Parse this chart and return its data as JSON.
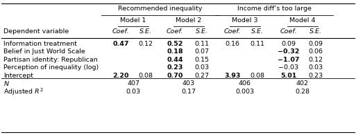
{
  "header_group1": "Recommended inequality",
  "header_group2": "Income diff’s too large",
  "model_headers": [
    "Model 1",
    "Model 2",
    "Model 3",
    "Model 4"
  ],
  "col_headers": [
    "Coef.",
    "S.E.",
    "Coef.",
    "S.E.",
    "Coef.",
    "S.E.",
    "Coef.",
    "S.E."
  ],
  "dep_var_label": "Dependent variable",
  "row_labels": [
    "Information treatment",
    "Belief in Just World Scale",
    "Partisan identity: Republican",
    "Perception of inequality (log)",
    "Intercept",
    "N",
    "Adjusted R²"
  ],
  "data": [
    [
      "0.47",
      "0.12",
      "0.52",
      "0.11",
      "0.16",
      "0.11",
      "0.09",
      "0.09"
    ],
    [
      "",
      "",
      "0.18",
      "0.07",
      "",
      "",
      "−0.32",
      "0.06"
    ],
    [
      "",
      "",
      "0.44",
      "0.15",
      "",
      "",
      "−1.07",
      "0.12"
    ],
    [
      "",
      "",
      "0.23",
      "0.03",
      "",
      "",
      "−0.03",
      "0.03"
    ],
    [
      "2.20",
      "0.08",
      "0.70",
      "0.27",
      "3.93",
      "0.08",
      "5.01",
      "0.23"
    ],
    [
      "407",
      "",
      "403",
      "",
      "406",
      "",
      "402",
      ""
    ],
    [
      "0.03",
      "",
      "0.17",
      "",
      "0.003",
      "",
      "0.28",
      ""
    ]
  ],
  "bold_coef": [
    [
      true,
      false,
      true,
      false,
      false,
      false,
      false,
      false
    ],
    [
      false,
      false,
      true,
      false,
      false,
      false,
      true,
      false
    ],
    [
      false,
      false,
      true,
      false,
      false,
      false,
      true,
      false
    ],
    [
      false,
      false,
      true,
      false,
      false,
      false,
      false,
      false
    ],
    [
      true,
      false,
      true,
      false,
      true,
      false,
      true,
      false
    ],
    [
      false,
      false,
      false,
      false,
      false,
      false,
      false,
      false
    ],
    [
      false,
      false,
      false,
      false,
      false,
      false,
      false,
      false
    ]
  ],
  "background": "#ffffff",
  "fs": 6.8
}
